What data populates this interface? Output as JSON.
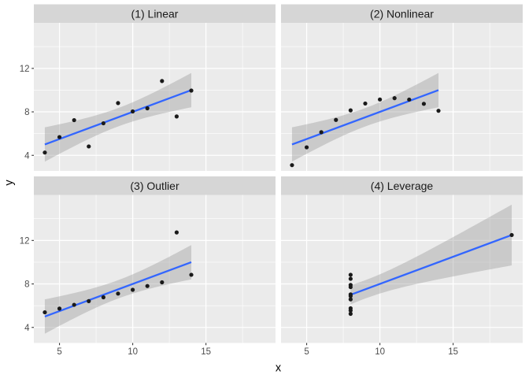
{
  "chart_data": {
    "type": "scatter",
    "title": "",
    "xlabel": "x",
    "ylabel": "y",
    "x_ticks": [
      5,
      10,
      15
    ],
    "y_ticks": [
      4,
      8,
      12
    ],
    "x_minor_ticks": [
      7.5,
      12.5,
      17.5
    ],
    "y_minor_ticks": [
      2,
      6,
      10,
      14
    ],
    "xlim": [
      3.25,
      19.75
    ],
    "ylim": [
      2.57,
      16.19
    ],
    "grid": true,
    "legend_position": "none",
    "facet_layout": "2x2",
    "smooth": {
      "method": "lm",
      "ci_level": 0.95,
      "t_value": 2.262157
    },
    "facets": [
      {
        "label": "(1) Linear",
        "x": [
          10,
          8,
          13,
          9,
          11,
          14,
          6,
          4,
          12,
          7,
          5
        ],
        "y": [
          8.04,
          6.95,
          7.58,
          8.81,
          8.33,
          9.96,
          7.24,
          4.26,
          10.84,
          4.82,
          5.68
        ]
      },
      {
        "label": "(2) Nonlinear",
        "x": [
          10,
          8,
          13,
          9,
          11,
          14,
          6,
          4,
          12,
          7,
          5
        ],
        "y": [
          9.14,
          8.14,
          8.74,
          8.77,
          9.26,
          8.1,
          6.13,
          3.1,
          9.13,
          7.26,
          4.74
        ]
      },
      {
        "label": "(3) Outlier",
        "x": [
          10,
          8,
          13,
          9,
          11,
          14,
          6,
          4,
          12,
          7,
          5
        ],
        "y": [
          7.46,
          6.77,
          12.74,
          7.11,
          7.81,
          8.84,
          6.08,
          5.39,
          8.15,
          6.42,
          5.73
        ]
      },
      {
        "label": "(4) Leverage",
        "x": [
          8,
          8,
          8,
          8,
          8,
          8,
          8,
          19,
          8,
          8,
          8
        ],
        "y": [
          6.58,
          5.76,
          7.71,
          8.84,
          8.47,
          7.04,
          5.25,
          12.5,
          5.56,
          7.91,
          6.89
        ]
      }
    ]
  },
  "theme": {
    "background": "#FFFFFF",
    "panel_background": "#EBEBEB",
    "strip_background": "#D6D6D6",
    "grid_color": "#FFFFFF",
    "point_color": "#1A1A1A",
    "line_color": "#3366FF",
    "ribbon_color": "#999999",
    "ribbon_opacity": 0.4,
    "tick_color": "#333333",
    "tick_label_color": "#4D4D4D",
    "strip_text_color": "#1A1A1A",
    "axis_title_color": "#000000"
  }
}
